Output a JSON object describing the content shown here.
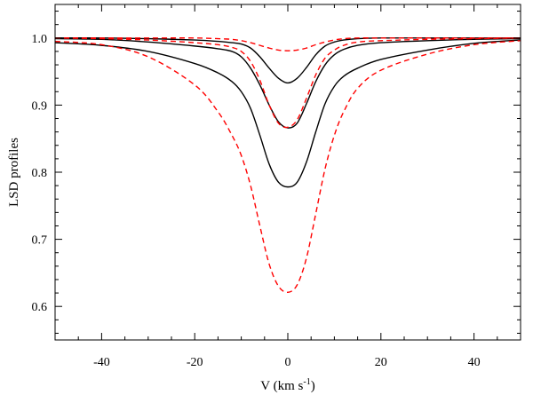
{
  "chart_data": {
    "type": "line",
    "title": "",
    "xlabel": "V (km s",
    "xlabel_sup": "-1",
    "xlabel_close": ")",
    "ylabel": "LSD profiles",
    "xlim": [
      -50,
      50
    ],
    "ylim": [
      0.55,
      1.05
    ],
    "xticks": [
      -40,
      -20,
      0,
      20,
      40
    ],
    "xtick_labels": [
      "-40",
      "-20",
      "0",
      "20",
      "40"
    ],
    "yticks": [
      0.6,
      0.7,
      0.8,
      0.9,
      1.0
    ],
    "ytick_labels": [
      "0.6",
      "0.7",
      "0.8",
      "0.9",
      "1.0"
    ],
    "grid": false,
    "x": [
      -50,
      -40,
      -30,
      -20,
      -15,
      -12,
      -10,
      -8,
      -6,
      -4,
      -2,
      0,
      2,
      4,
      6,
      8,
      10,
      12,
      15,
      20,
      30,
      40,
      50
    ],
    "series": [
      {
        "color": "#000000",
        "dash": "solid",
        "values": [
          1.0,
          1.0,
          0.999,
          0.997,
          0.995,
          0.993,
          0.991,
          0.985,
          0.972,
          0.955,
          0.94,
          0.933,
          0.94,
          0.956,
          0.975,
          0.988,
          0.994,
          0.997,
          0.999,
          1.0,
          1.0,
          1.0,
          1.0
        ]
      },
      {
        "color": "#000000",
        "dash": "solid",
        "values": [
          0.999,
          0.998,
          0.994,
          0.988,
          0.984,
          0.98,
          0.972,
          0.955,
          0.93,
          0.9,
          0.875,
          0.866,
          0.873,
          0.902,
          0.935,
          0.96,
          0.975,
          0.983,
          0.989,
          0.993,
          0.996,
          0.998,
          0.999
        ]
      },
      {
        "color": "#000000",
        "dash": "solid",
        "values": [
          0.993,
          0.989,
          0.98,
          0.962,
          0.948,
          0.935,
          0.92,
          0.895,
          0.855,
          0.812,
          0.785,
          0.778,
          0.785,
          0.815,
          0.86,
          0.902,
          0.928,
          0.943,
          0.955,
          0.968,
          0.982,
          0.992,
          0.997
        ]
      },
      {
        "color": "#ff0000",
        "dash": "dashed",
        "values": [
          1.0,
          1.0,
          1.0,
          1.0,
          0.999,
          0.998,
          0.996,
          0.993,
          0.989,
          0.985,
          0.982,
          0.981,
          0.982,
          0.985,
          0.99,
          0.994,
          0.997,
          0.999,
          1.0,
          1.0,
          1.0,
          1.0,
          1.0
        ]
      },
      {
        "color": "#ff0000",
        "dash": "dashed",
        "values": [
          1.0,
          0.999,
          0.997,
          0.993,
          0.99,
          0.986,
          0.98,
          0.965,
          0.937,
          0.9,
          0.873,
          0.867,
          0.878,
          0.91,
          0.945,
          0.97,
          0.982,
          0.989,
          0.994,
          0.996,
          0.998,
          0.999,
          1.0
        ]
      },
      {
        "color": "#ff0000",
        "dash": "dashed",
        "values": [
          0.995,
          0.99,
          0.972,
          0.93,
          0.89,
          0.855,
          0.825,
          0.78,
          0.72,
          0.663,
          0.63,
          0.621,
          0.632,
          0.672,
          0.738,
          0.805,
          0.855,
          0.89,
          0.925,
          0.952,
          0.976,
          0.99,
          0.996
        ]
      }
    ]
  }
}
